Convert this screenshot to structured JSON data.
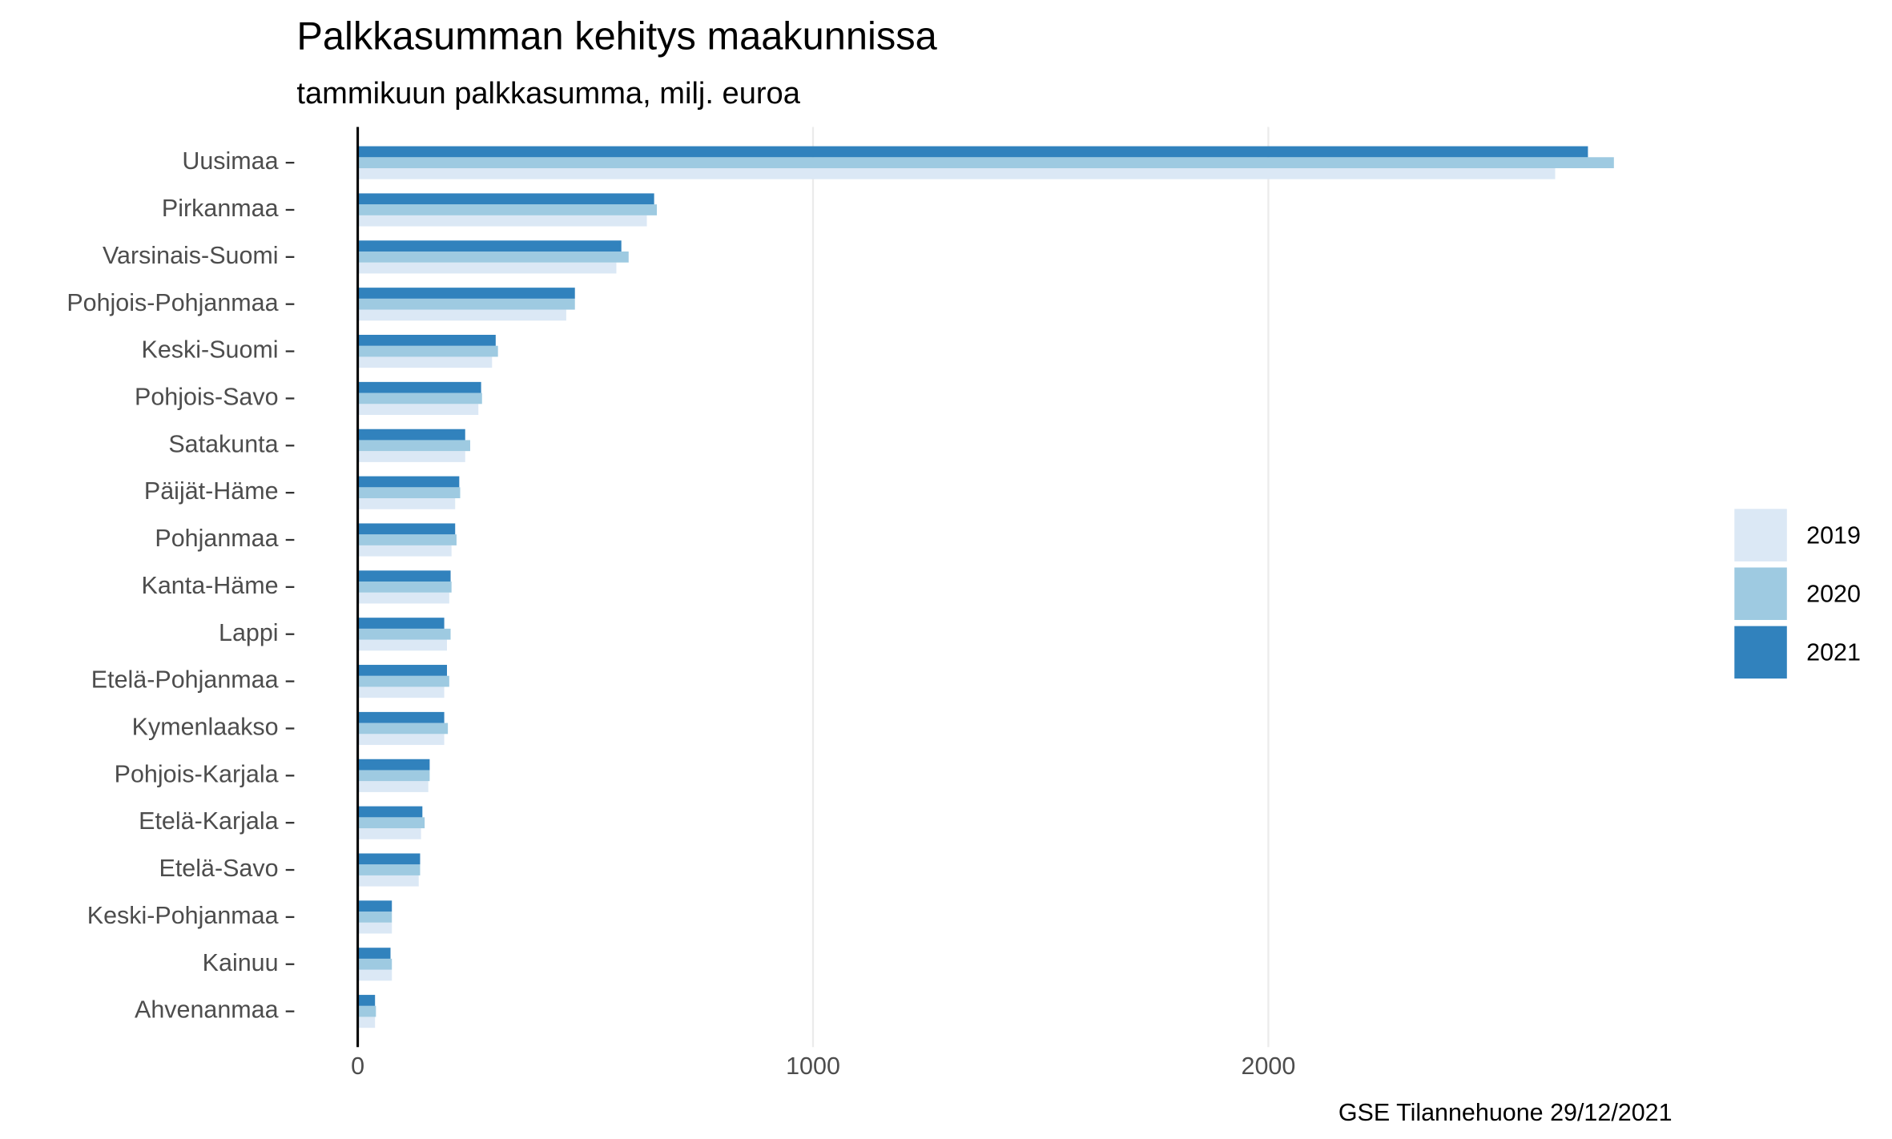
{
  "chart_data": {
    "type": "hbar",
    "title": "Palkkasumman kehitys maakunnissa",
    "subtitle": "tammikuun palkkasumma, milj. euroa",
    "caption": "GSE Tilannehuone 29/12/2021",
    "categories": [
      "Uusimaa",
      "Pirkanmaa",
      "Varsinais-Suomi",
      "Pohjois-Pohjanmaa",
      "Keski-Suomi",
      "Pohjois-Savo",
      "Satakunta",
      "Päijät-Häme",
      "Pohjanmaa",
      "Kanta-Häme",
      "Lappi",
      "Etelä-Pohjanmaa",
      "Kymenlaakso",
      "Pohjois-Karjala",
      "Etelä-Karjala",
      "Etelä-Savo",
      "Keski-Pohjanmaa",
      "Kainuu",
      "Ahvenanmaa"
    ],
    "series": [
      {
        "name": "2019",
        "color": "#dbe8f5",
        "values": [
          2630,
          635,
          568,
          458,
          295,
          265,
          236,
          214,
          206,
          201,
          196,
          190,
          190,
          155,
          139,
          134,
          75,
          75,
          38
        ]
      },
      {
        "name": "2020",
        "color": "#9ecae1",
        "values": [
          2759,
          657,
          595,
          477,
          308,
          273,
          247,
          225,
          217,
          206,
          204,
          201,
          198,
          158,
          147,
          137,
          75,
          75,
          40
        ]
      },
      {
        "name": "2021",
        "color": "#3182bd",
        "values": [
          2702,
          651,
          579,
          477,
          303,
          271,
          236,
          223,
          214,
          204,
          190,
          196,
          190,
          158,
          142,
          137,
          75,
          72,
          38
        ]
      }
    ],
    "xlim": [
      0,
      2820
    ],
    "xticks": [
      0,
      1000,
      2000
    ],
    "grid": true,
    "legend": "right"
  }
}
